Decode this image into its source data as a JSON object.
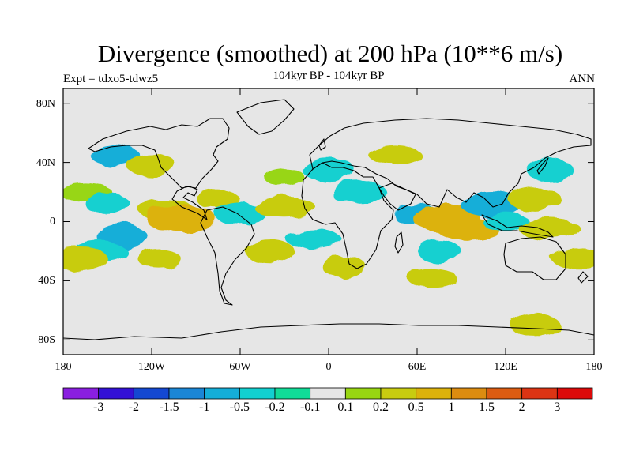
{
  "title": "Divergence (smoothed) at 200 hPa (10**6 m/s)",
  "subtitle_left": "Expt = tdxo5-tdwz5",
  "subtitle_center": "104kyr BP - 104kyr BP",
  "subtitle_right": "ANN",
  "y_ticks": [
    "80N",
    "40N",
    "0",
    "40S",
    "80S"
  ],
  "x_ticks": [
    "180",
    "120W",
    "60W",
    "0",
    "60E",
    "120E",
    "180"
  ],
  "colorbar": {
    "labels": [
      "-3",
      "-2",
      "-1.5",
      "-1",
      "-0.5",
      "-0.2",
      "-0.1",
      "0.1",
      "0.2",
      "0.5",
      "1",
      "1.5",
      "2",
      "3"
    ],
    "colors": [
      "#8a1fe0",
      "#3311d6",
      "#1448d2",
      "#1a86d6",
      "#14aed8",
      "#12d0d0",
      "#11dc98",
      "#e6e6e6",
      "#98d612",
      "#c8cc10",
      "#dcb20c",
      "#dc8c10",
      "#dc5c12",
      "#dc3414",
      "#dc0a0a"
    ]
  },
  "chart_data": {
    "type": "heatmap",
    "title": "Divergence (smoothed) at 200 hPa (10**6 m/s)",
    "subtitle": "104kyr BP - 104kyr BP",
    "experiment": "Expt = tdxo5-tdwz5",
    "season": "ANN",
    "projection": "cylindrical equidistant",
    "xlim": [
      -180,
      180
    ],
    "ylim": [
      -90,
      90
    ],
    "levels": [
      -3,
      -2,
      -1.5,
      -1,
      -0.5,
      -0.2,
      -0.1,
      0.1,
      0.2,
      0.5,
      1,
      1.5,
      2,
      3
    ],
    "features": [
      {
        "lon": -145,
        "lat": 45,
        "value": -0.5
      },
      {
        "lon": -120,
        "lat": 38,
        "value": 0.3
      },
      {
        "lon": -165,
        "lat": 20,
        "value": 0.2
      },
      {
        "lon": -150,
        "lat": 12,
        "value": -0.3
      },
      {
        "lon": -110,
        "lat": 8,
        "value": 0.5
      },
      {
        "lon": -100,
        "lat": 2,
        "value": 0.8
      },
      {
        "lon": -75,
        "lat": 15,
        "value": 0.3
      },
      {
        "lon": -60,
        "lat": 5,
        "value": -0.3
      },
      {
        "lon": -30,
        "lat": 10,
        "value": 0.5
      },
      {
        "lon": -140,
        "lat": -10,
        "value": -0.5
      },
      {
        "lon": -155,
        "lat": -20,
        "value": -0.4
      },
      {
        "lon": -170,
        "lat": -25,
        "value": 0.4
      },
      {
        "lon": -115,
        "lat": -25,
        "value": 0.3
      },
      {
        "lon": -40,
        "lat": -20,
        "value": 0.3
      },
      {
        "lon": -10,
        "lat": -12,
        "value": -0.3
      },
      {
        "lon": 10,
        "lat": -30,
        "value": 0.3
      },
      {
        "lon": 45,
        "lat": 45,
        "value": 0.4
      },
      {
        "lon": 20,
        "lat": 20,
        "value": -0.3
      },
      {
        "lon": 60,
        "lat": 5,
        "value": -0.5
      },
      {
        "lon": 80,
        "lat": 2,
        "value": 0.9
      },
      {
        "lon": 95,
        "lat": -5,
        "value": 0.6
      },
      {
        "lon": 75,
        "lat": -20,
        "value": -0.3
      },
      {
        "lon": 70,
        "lat": -38,
        "value": 0.3
      },
      {
        "lon": 110,
        "lat": 12,
        "value": -0.5
      },
      {
        "lon": 120,
        "lat": 0,
        "value": -0.4
      },
      {
        "lon": 140,
        "lat": 15,
        "value": 0.4
      },
      {
        "lon": 150,
        "lat": -5,
        "value": 0.5
      },
      {
        "lon": 150,
        "lat": 35,
        "value": -0.4
      },
      {
        "lon": 170,
        "lat": -25,
        "value": 0.5
      },
      {
        "lon": 0,
        "lat": 35,
        "value": -0.2
      },
      {
        "lon": -30,
        "lat": 30,
        "value": 0.2
      },
      {
        "lon": 140,
        "lat": -70,
        "value": 0.3
      }
    ]
  }
}
